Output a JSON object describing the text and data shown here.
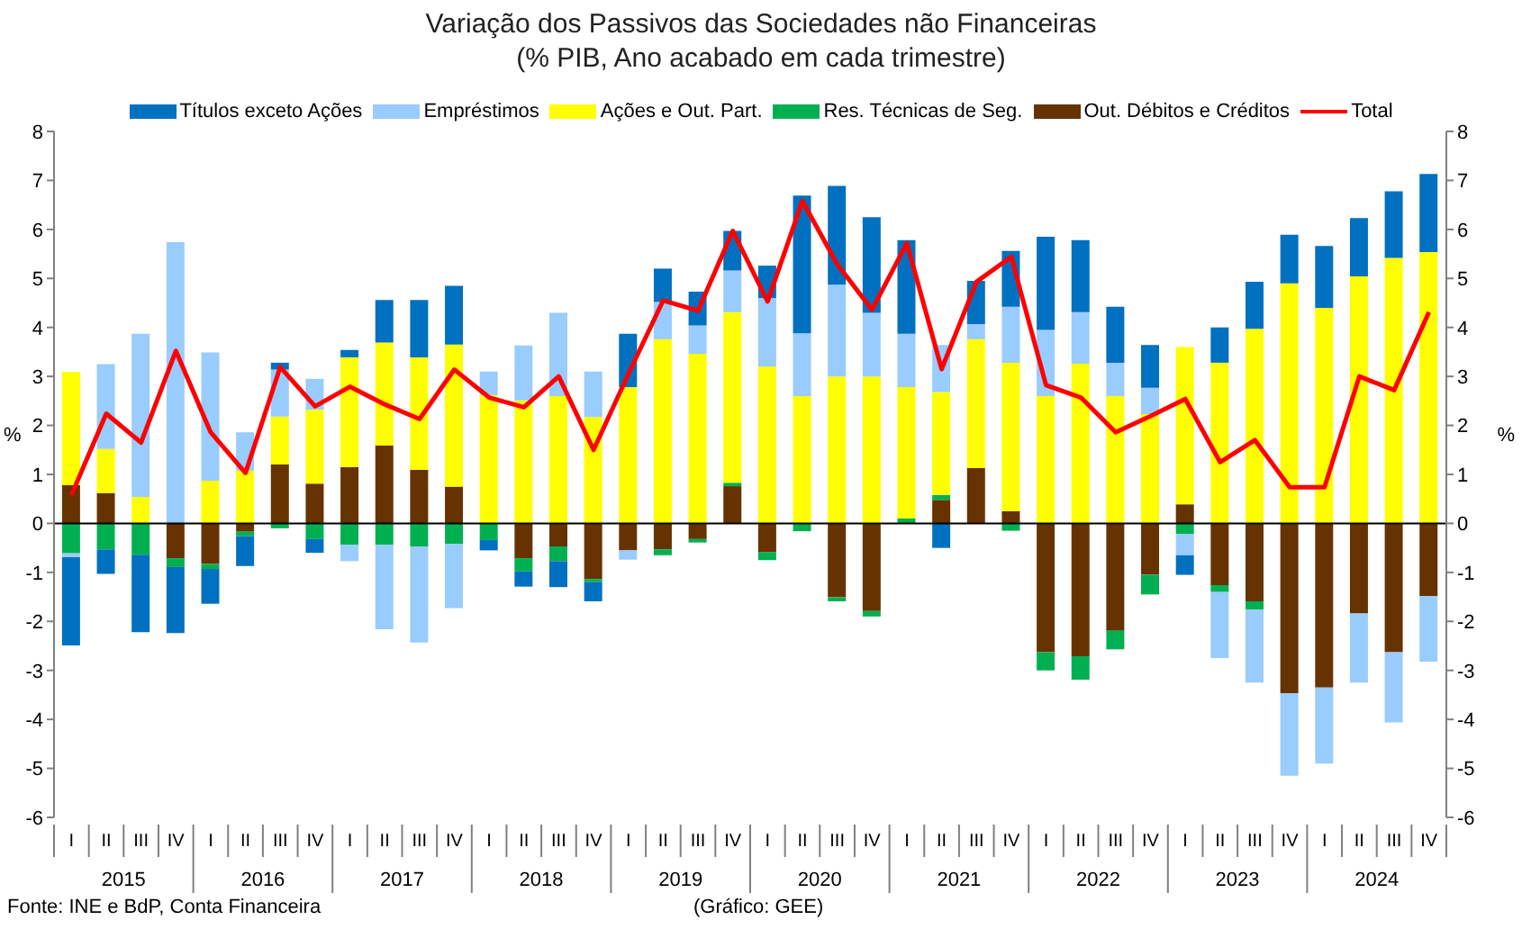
{
  "chart_data": {
    "type": "bar",
    "title": "Variação dos Passivos das Sociedades não Financeiras",
    "subtitle": "(% PIB, Ano acabado em cada trimestre)",
    "ylabel": "%",
    "y2label": "%",
    "categories": [
      "I",
      "II",
      "III",
      "IV",
      "I",
      "II",
      "III",
      "IV",
      "I",
      "II",
      "III",
      "IV",
      "I",
      "II",
      "III",
      "IV",
      "I",
      "II",
      "III",
      "IV",
      "I",
      "II",
      "III",
      "IV",
      "I",
      "II",
      "III",
      "IV",
      "I",
      "II",
      "III",
      "IV",
      "I",
      "II",
      "III",
      "IV",
      "I",
      "II",
      "III",
      "IV"
    ],
    "stacked": true,
    "series": [
      {
        "name": "Out. Débitos e Créditos",
        "color": "#663300",
        "values": [
          0.78,
          0.62,
          0,
          -0.71,
          -0.83,
          -0.17,
          1.2,
          0.81,
          1.15,
          1.59,
          1.09,
          0.75,
          0,
          -0.71,
          -0.47,
          -1.14,
          -0.55,
          -0.53,
          -0.32,
          0.76,
          -0.59,
          0,
          -1.51,
          -1.79,
          0,
          0.48,
          1.13,
          0.25,
          -2.63,
          -2.71,
          -2.19,
          -1.05,
          0.39,
          -1.26,
          -1.59,
          -3.47,
          -3.35,
          -1.84,
          -2.63,
          -1.48
        ]
      },
      {
        "name": "Res. Técnicas de Seg.",
        "color": "#00b050",
        "values": [
          -0.61,
          -0.53,
          -0.64,
          -0.18,
          -0.1,
          -0.09,
          -0.1,
          -0.32,
          -0.44,
          -0.44,
          -0.47,
          -0.42,
          -0.34,
          -0.27,
          -0.3,
          -0.06,
          0,
          -0.12,
          -0.07,
          0.07,
          -0.16,
          -0.16,
          -0.08,
          -0.11,
          0.1,
          0.1,
          0,
          -0.15,
          -0.37,
          -0.48,
          -0.38,
          -0.4,
          -0.22,
          -0.14,
          -0.17,
          0,
          0,
          0,
          0,
          0
        ]
      },
      {
        "name": "Ações e Out. Part.",
        "color": "#ffff00",
        "values": [
          2.31,
          0.9,
          0.54,
          0,
          0.87,
          1.08,
          0.98,
          1.51,
          2.24,
          2.1,
          2.3,
          2.9,
          2.62,
          2.51,
          2.6,
          2.17,
          2.78,
          3.76,
          3.46,
          3.48,
          3.2,
          2.6,
          3.0,
          3.0,
          2.68,
          2.1,
          2.63,
          3.03,
          2.6,
          3.26,
          2.6,
          2.23,
          3.21,
          3.28,
          3.97,
          4.9,
          4.4,
          5.04,
          5.42,
          5.54
        ]
      },
      {
        "name": "Empréstimos",
        "color": "#99ccff",
        "values": [
          -0.08,
          1.73,
          3.33,
          5.74,
          2.62,
          0.78,
          0.96,
          0.63,
          -0.33,
          -1.72,
          -1.96,
          -1.31,
          0.48,
          1.12,
          1.7,
          0.93,
          -0.19,
          0.76,
          0.58,
          0.85,
          1.4,
          1.28,
          1.87,
          1.3,
          1.09,
          0.96,
          0.31,
          1.14,
          1.35,
          1.05,
          0.68,
          0.54,
          -0.43,
          -1.35,
          -1.49,
          -1.68,
          -1.55,
          -1.41,
          -1.43,
          -1.34
        ]
      },
      {
        "name": "Títulos exceto Ações",
        "color": "#0070c0",
        "values": [
          -1.8,
          -0.5,
          -1.58,
          -1.35,
          -0.71,
          -0.61,
          0.14,
          -0.28,
          0.15,
          0.87,
          1.17,
          1.2,
          -0.21,
          -0.31,
          -0.53,
          -0.39,
          1.09,
          0.68,
          0.69,
          0.81,
          0.66,
          2.81,
          2.02,
          1.95,
          1.91,
          -0.5,
          0.88,
          1.14,
          1.9,
          1.47,
          1.14,
          0.87,
          -0.4,
          0.72,
          0.96,
          0.99,
          1.26,
          1.19,
          1.36,
          1.59
        ]
      },
      {
        "name": "Total",
        "type": "line",
        "color": "#ff0000",
        "values": [
          0.58,
          2.24,
          1.65,
          3.52,
          1.86,
          1.03,
          3.19,
          2.39,
          2.79,
          2.43,
          2.13,
          3.14,
          2.57,
          2.37,
          3.0,
          1.5,
          3.05,
          4.55,
          4.34,
          5.97,
          4.53,
          6.58,
          5.29,
          4.36,
          5.72,
          3.15,
          4.93,
          5.44,
          2.82,
          2.57,
          1.86,
          2.19,
          2.54,
          1.25,
          1.7,
          0.74,
          0.74,
          3.0,
          2.72,
          4.31
        ]
      }
    ],
    "ylim": [
      -6,
      8
    ],
    "yticks": [
      -6,
      -5,
      -4,
      -3,
      -2,
      -1,
      0,
      1,
      2,
      3,
      4,
      5,
      6,
      7,
      8
    ],
    "y2lim": [
      -6,
      8
    ],
    "y2ticks": [
      -6,
      -5,
      -4,
      -3,
      -2,
      -1,
      0,
      1,
      2,
      3,
      4,
      5,
      6,
      7,
      8
    ],
    "ref_lines": [
      {
        "axis": "y",
        "value": 0,
        "color": "#000000"
      }
    ],
    "legend": "top",
    "grid": false,
    "marker": "none",
    "line_style": "solid",
    "annotations": [
      "Fonte: INE e BdP, Conta Financeira",
      "(Gráfico: GEE)",
      "2015",
      "2016",
      "2017",
      "2018",
      "2019",
      "2020",
      "2021",
      "2022",
      "2023",
      "2024"
    ]
  }
}
